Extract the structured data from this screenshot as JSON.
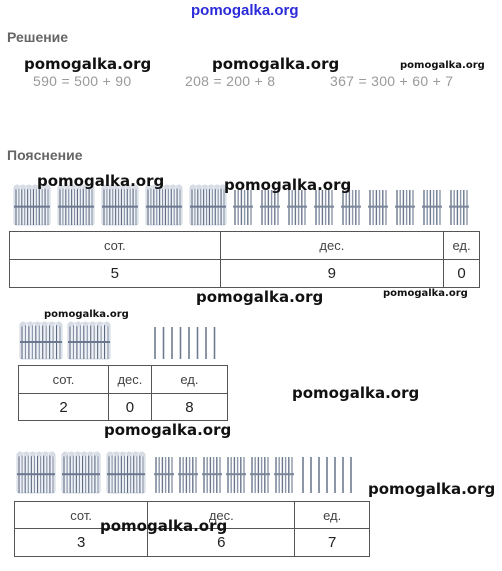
{
  "site_watermark": "pomogalka.org",
  "solution": {
    "heading": "Решение",
    "equations": [
      "590 = 500 + 90",
      "208 = 200 + 8",
      "367 = 300 + 60 + 7"
    ]
  },
  "explanation": {
    "heading": "Пояснение",
    "headers": [
      "сот.",
      "дес.",
      "ед."
    ],
    "examples": [
      {
        "hundreds": "5",
        "tens": "9",
        "ones": "0"
      },
      {
        "hundreds": "2",
        "tens": "0",
        "ones": "8"
      },
      {
        "hundreds": "3",
        "tens": "6",
        "ones": "7"
      }
    ]
  },
  "watermarks": [
    "pomogalka.org",
    "pomogalka.org",
    "pomogalka.org",
    "pomogalka.org",
    "pomogalka.org",
    "pomogalka.org",
    "pomogalka.org",
    "pomogalka.org",
    "pomogalka.org",
    "pomogalka.org",
    "pomogalka.org",
    "pomogalka.org",
    "pomogalka.org"
  ]
}
